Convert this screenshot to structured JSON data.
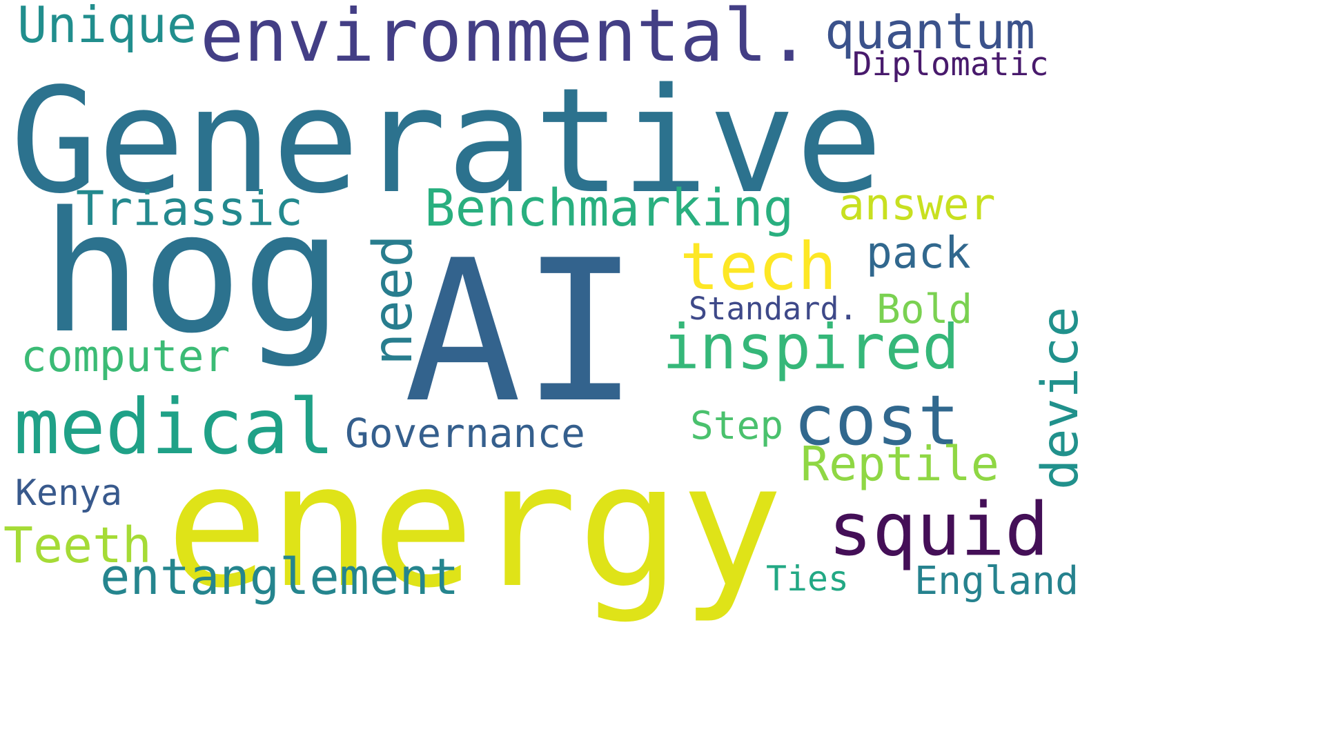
{
  "word_cloud": {
    "background_color": "#ffffff",
    "words": [
      {
        "text": "Generative",
        "color": "#2c728e",
        "vertical": false
      },
      {
        "text": "AI",
        "color": "#33638d",
        "vertical": false
      },
      {
        "text": "energy",
        "color": "#dfe318",
        "vertical": false
      },
      {
        "text": "hog",
        "color": "#2c728e",
        "vertical": false
      },
      {
        "text": "environmental.",
        "color": "#433e85",
        "vertical": false
      },
      {
        "text": "Unique",
        "color": "#218e8d",
        "vertical": false
      },
      {
        "text": "quantum",
        "color": "#3b528b",
        "vertical": false
      },
      {
        "text": "Diplomatic",
        "color": "#481a6c",
        "vertical": false
      },
      {
        "text": "Triassic",
        "color": "#23898e",
        "vertical": false
      },
      {
        "text": "need",
        "color": "#287d8e",
        "vertical": true
      },
      {
        "text": "Benchmarking",
        "color": "#29af7f",
        "vertical": false
      },
      {
        "text": "answer",
        "color": "#c8e020",
        "vertical": false
      },
      {
        "text": "tech",
        "color": "#fde725",
        "vertical": false
      },
      {
        "text": "pack",
        "color": "#31688e",
        "vertical": false
      },
      {
        "text": "device",
        "color": "#21918c",
        "vertical": true
      },
      {
        "text": "Standard.",
        "color": "#3e4989",
        "vertical": false
      },
      {
        "text": "Bold",
        "color": "#7ad151",
        "vertical": false
      },
      {
        "text": "inspired",
        "color": "#35b779",
        "vertical": false
      },
      {
        "text": "computer",
        "color": "#3bbb75",
        "vertical": false
      },
      {
        "text": "medical",
        "color": "#1fa187",
        "vertical": false
      },
      {
        "text": "Governance",
        "color": "#355f8d",
        "vertical": false
      },
      {
        "text": "cost",
        "color": "#31688e",
        "vertical": false
      },
      {
        "text": "Step",
        "color": "#4ac16d",
        "vertical": false
      },
      {
        "text": "Reptile",
        "color": "#8fd744",
        "vertical": false
      },
      {
        "text": "Kenya",
        "color": "#38598c",
        "vertical": false
      },
      {
        "text": "squid",
        "color": "#440f57",
        "vertical": false
      },
      {
        "text": "Teeth",
        "color": "#a5db36",
        "vertical": false
      },
      {
        "text": "entanglement",
        "color": "#25858e",
        "vertical": false
      },
      {
        "text": "Ties",
        "color": "#22a884",
        "vertical": false
      },
      {
        "text": "England",
        "color": "#26828e",
        "vertical": false
      }
    ]
  }
}
